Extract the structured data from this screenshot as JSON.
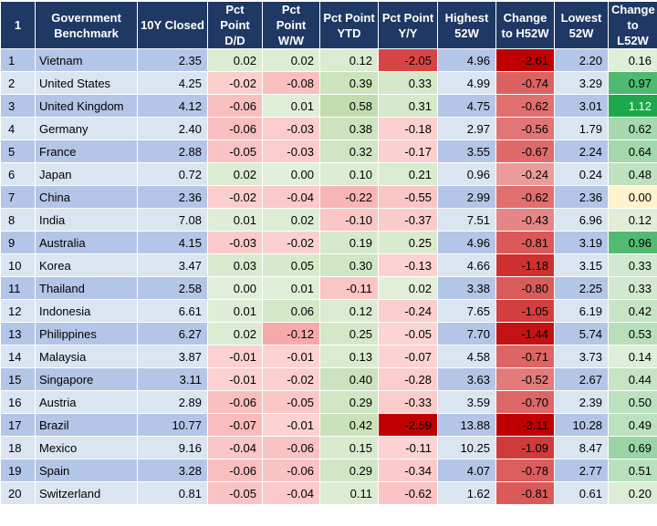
{
  "headers": [
    "1",
    "Government Benchmark",
    "10Y Closed",
    "Pct Point D/D",
    "Pct Point W/W",
    "Pct Point YTD",
    "Pct Point Y/Y",
    "Highest 52W",
    "Change to H52W",
    "Lowest 52W",
    "Change to L52W"
  ],
  "rows": [
    [
      "1",
      "Vietnam",
      "2.35",
      "0.02",
      "0.02",
      "0.12",
      "-2.05",
      "4.96",
      "-2.61",
      "2.20",
      "0.16"
    ],
    [
      "2",
      "United States",
      "4.25",
      "-0.02",
      "-0.08",
      "0.39",
      "0.33",
      "4.99",
      "-0.74",
      "3.29",
      "0.97"
    ],
    [
      "3",
      "United Kingdom",
      "4.12",
      "-0.06",
      "0.01",
      "0.58",
      "0.31",
      "4.75",
      "-0.62",
      "3.01",
      "1.12"
    ],
    [
      "4",
      "Germany",
      "2.40",
      "-0.06",
      "-0.03",
      "0.38",
      "-0.18",
      "2.97",
      "-0.56",
      "1.79",
      "0.62"
    ],
    [
      "5",
      "France",
      "2.88",
      "-0.05",
      "-0.03",
      "0.32",
      "-0.17",
      "3.55",
      "-0.67",
      "2.24",
      "0.64"
    ],
    [
      "6",
      "Japan",
      "0.72",
      "0.02",
      "0.00",
      "0.10",
      "0.21",
      "0.96",
      "-0.24",
      "0.24",
      "0.48"
    ],
    [
      "7",
      "China",
      "2.36",
      "-0.02",
      "-0.04",
      "-0.22",
      "-0.55",
      "2.99",
      "-0.62",
      "2.36",
      "0.00"
    ],
    [
      "8",
      "India",
      "7.08",
      "0.01",
      "0.02",
      "-0.10",
      "-0.37",
      "7.51",
      "-0.43",
      "6.96",
      "0.12"
    ],
    [
      "9",
      "Australia",
      "4.15",
      "-0.03",
      "-0.02",
      "0.19",
      "0.25",
      "4.96",
      "-0.81",
      "3.19",
      "0.96"
    ],
    [
      "10",
      "Korea",
      "3.47",
      "0.03",
      "0.05",
      "0.30",
      "-0.13",
      "4.66",
      "-1.18",
      "3.15",
      "0.33"
    ],
    [
      "11",
      "Thailand",
      "2.58",
      "0.00",
      "0.01",
      "-0.11",
      "0.02",
      "3.38",
      "-0.80",
      "2.25",
      "0.33"
    ],
    [
      "12",
      "Indonesia",
      "6.61",
      "0.01",
      "0.06",
      "0.12",
      "-0.24",
      "7.65",
      "-1.05",
      "6.19",
      "0.42"
    ],
    [
      "13",
      "Philippines",
      "6.27",
      "0.02",
      "-0.12",
      "0.25",
      "-0.05",
      "7.70",
      "-1.44",
      "5.74",
      "0.53"
    ],
    [
      "14",
      "Malaysia",
      "3.87",
      "-0.01",
      "-0.01",
      "0.13",
      "-0.07",
      "4.58",
      "-0.71",
      "3.73",
      "0.14"
    ],
    [
      "15",
      "Singapore",
      "3.11",
      "-0.01",
      "-0.02",
      "0.40",
      "-0.28",
      "3.63",
      "-0.52",
      "2.67",
      "0.44"
    ],
    [
      "16",
      "Austria",
      "2.89",
      "-0.06",
      "-0.05",
      "0.29",
      "-0.33",
      "3.59",
      "-0.70",
      "2.39",
      "0.50"
    ],
    [
      "17",
      "Brazil",
      "10.77",
      "-0.07",
      "-0.01",
      "0.42",
      "-2.59",
      "13.88",
      "-3.11",
      "10.28",
      "0.49"
    ],
    [
      "18",
      "Mexico",
      "9.16",
      "-0.04",
      "-0.06",
      "0.15",
      "-0.11",
      "10.25",
      "-1.09",
      "8.47",
      "0.69"
    ],
    [
      "19",
      "Spain",
      "3.28",
      "-0.06",
      "-0.06",
      "0.29",
      "-0.34",
      "4.07",
      "-0.78",
      "2.77",
      "0.51"
    ],
    [
      "20",
      "Switzerland",
      "0.81",
      "-0.05",
      "-0.04",
      "0.11",
      "-0.62",
      "1.62",
      "-0.81",
      "0.61",
      "0.20"
    ]
  ],
  "colors": {
    "header_bg": "#1f3864",
    "header_text": "#ffffff",
    "row_label_bg": "#b4c6e7",
    "row_alt_bg": "#dbe5f1",
    "pos_light": "#e2efda",
    "neg_light": "#fcd5d5"
  }
}
